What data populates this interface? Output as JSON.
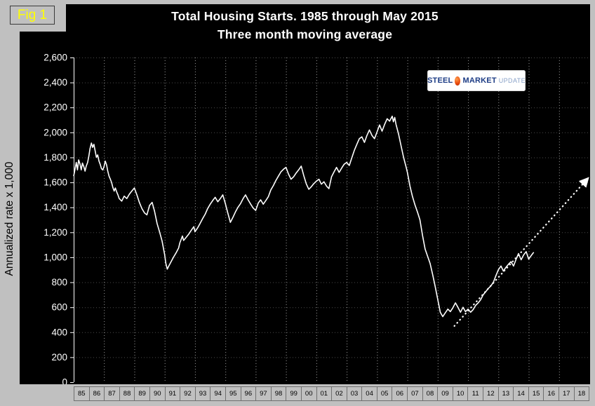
{
  "figure": {
    "label": "Fig 1"
  },
  "logo": {
    "steel": "STEEL",
    "market": "MARKET",
    "update": "UPDATE"
  },
  "colors": {
    "frame": "#c0c0c0",
    "plot_background": "#000000",
    "line": "#ffffff",
    "fig_label": "#ffff00",
    "logo_text": "#1d3c85",
    "logo_ball": "#e8480a"
  },
  "chart_data": {
    "type": "line",
    "title": "Total Housing Starts. 1985 through May 2015",
    "subtitle": "Three month moving average",
    "ylabel": "Annualized rate x 1,000",
    "ylim": [
      0,
      2600
    ],
    "ytick_step": 200,
    "ytick_labels": [
      "0",
      "200",
      "400",
      "600",
      "800",
      "1,000",
      "1,200",
      "1,400",
      "1,600",
      "1,800",
      "2,000",
      "2,200",
      "2,400",
      "2,600"
    ],
    "x_range": [
      1985,
      2019
    ],
    "xtick_labels": [
      "85",
      "86",
      "87",
      "88",
      "89",
      "90",
      "91",
      "92",
      "93",
      "94",
      "95",
      "96",
      "97",
      "98",
      "99",
      "00",
      "01",
      "02",
      "03",
      "04",
      "05",
      "06",
      "07",
      "08",
      "09",
      "10",
      "11",
      "12",
      "13",
      "14",
      "15",
      "16",
      "17",
      "18"
    ],
    "grid": {
      "horizontal": "dotted",
      "vertical": "dotted every 2 years"
    },
    "legend": "none",
    "series": [
      {
        "name": "housing-starts-3mma",
        "style": "solid",
        "color": "#ffffff",
        "points": [
          [
            1985.0,
            1650
          ],
          [
            1985.08,
            1700
          ],
          [
            1985.17,
            1760
          ],
          [
            1985.25,
            1700
          ],
          [
            1985.33,
            1780
          ],
          [
            1985.42,
            1745
          ],
          [
            1985.5,
            1700
          ],
          [
            1985.58,
            1755
          ],
          [
            1985.67,
            1725
          ],
          [
            1985.75,
            1690
          ],
          [
            1985.83,
            1730
          ],
          [
            1985.92,
            1760
          ],
          [
            1986.0,
            1810
          ],
          [
            1986.08,
            1870
          ],
          [
            1986.17,
            1915
          ],
          [
            1986.25,
            1880
          ],
          [
            1986.33,
            1905
          ],
          [
            1986.42,
            1850
          ],
          [
            1986.5,
            1800
          ],
          [
            1986.58,
            1820
          ],
          [
            1986.67,
            1770
          ],
          [
            1986.75,
            1745
          ],
          [
            1986.83,
            1710
          ],
          [
            1986.92,
            1700
          ],
          [
            1987.0,
            1725
          ],
          [
            1987.08,
            1770
          ],
          [
            1987.17,
            1740
          ],
          [
            1987.25,
            1690
          ],
          [
            1987.33,
            1650
          ],
          [
            1987.42,
            1625
          ],
          [
            1987.5,
            1600
          ],
          [
            1987.58,
            1560
          ],
          [
            1987.67,
            1530
          ],
          [
            1987.75,
            1555
          ],
          [
            1987.83,
            1525
          ],
          [
            1987.92,
            1500
          ],
          [
            1988.0,
            1470
          ],
          [
            1988.17,
            1450
          ],
          [
            1988.33,
            1490
          ],
          [
            1988.5,
            1470
          ],
          [
            1988.67,
            1505
          ],
          [
            1988.83,
            1530
          ],
          [
            1989.0,
            1555
          ],
          [
            1989.17,
            1500
          ],
          [
            1989.33,
            1440
          ],
          [
            1989.5,
            1390
          ],
          [
            1989.67,
            1355
          ],
          [
            1989.83,
            1340
          ],
          [
            1990.0,
            1415
          ],
          [
            1990.17,
            1440
          ],
          [
            1990.33,
            1370
          ],
          [
            1990.5,
            1270
          ],
          [
            1990.67,
            1200
          ],
          [
            1990.83,
            1130
          ],
          [
            1991.0,
            1020
          ],
          [
            1991.08,
            950
          ],
          [
            1991.17,
            905
          ],
          [
            1991.25,
            925
          ],
          [
            1991.42,
            965
          ],
          [
            1991.58,
            1000
          ],
          [
            1991.75,
            1035
          ],
          [
            1991.92,
            1075
          ],
          [
            1992.0,
            1115
          ],
          [
            1992.17,
            1170
          ],
          [
            1992.25,
            1135
          ],
          [
            1992.42,
            1160
          ],
          [
            1992.58,
            1185
          ],
          [
            1992.75,
            1215
          ],
          [
            1992.92,
            1245
          ],
          [
            1993.0,
            1205
          ],
          [
            1993.17,
            1235
          ],
          [
            1993.33,
            1270
          ],
          [
            1993.5,
            1310
          ],
          [
            1993.67,
            1345
          ],
          [
            1993.83,
            1390
          ],
          [
            1994.0,
            1425
          ],
          [
            1994.17,
            1455
          ],
          [
            1994.33,
            1480
          ],
          [
            1994.5,
            1445
          ],
          [
            1994.67,
            1470
          ],
          [
            1994.83,
            1500
          ],
          [
            1995.0,
            1430
          ],
          [
            1995.17,
            1350
          ],
          [
            1995.33,
            1280
          ],
          [
            1995.5,
            1320
          ],
          [
            1995.67,
            1365
          ],
          [
            1995.83,
            1400
          ],
          [
            1996.0,
            1430
          ],
          [
            1996.17,
            1470
          ],
          [
            1996.33,
            1500
          ],
          [
            1996.5,
            1460
          ],
          [
            1996.67,
            1425
          ],
          [
            1996.83,
            1395
          ],
          [
            1997.0,
            1375
          ],
          [
            1997.17,
            1435
          ],
          [
            1997.33,
            1460
          ],
          [
            1997.5,
            1425
          ],
          [
            1997.67,
            1455
          ],
          [
            1997.83,
            1485
          ],
          [
            1998.0,
            1540
          ],
          [
            1998.17,
            1575
          ],
          [
            1998.33,
            1615
          ],
          [
            1998.5,
            1650
          ],
          [
            1998.67,
            1685
          ],
          [
            1998.83,
            1705
          ],
          [
            1999.0,
            1720
          ],
          [
            1999.17,
            1665
          ],
          [
            1999.33,
            1625
          ],
          [
            1999.5,
            1645
          ],
          [
            1999.67,
            1675
          ],
          [
            1999.83,
            1700
          ],
          [
            2000.0,
            1730
          ],
          [
            2000.17,
            1655
          ],
          [
            2000.33,
            1590
          ],
          [
            2000.5,
            1545
          ],
          [
            2000.67,
            1565
          ],
          [
            2000.83,
            1590
          ],
          [
            2001.0,
            1610
          ],
          [
            2001.17,
            1625
          ],
          [
            2001.33,
            1585
          ],
          [
            2001.5,
            1605
          ],
          [
            2001.67,
            1570
          ],
          [
            2001.83,
            1550
          ],
          [
            2002.0,
            1645
          ],
          [
            2002.17,
            1685
          ],
          [
            2002.33,
            1720
          ],
          [
            2002.5,
            1680
          ],
          [
            2002.67,
            1715
          ],
          [
            2002.83,
            1745
          ],
          [
            2003.0,
            1760
          ],
          [
            2003.17,
            1735
          ],
          [
            2003.33,
            1795
          ],
          [
            2003.5,
            1855
          ],
          [
            2003.67,
            1905
          ],
          [
            2003.83,
            1950
          ],
          [
            2004.0,
            1965
          ],
          [
            2004.17,
            1920
          ],
          [
            2004.33,
            1975
          ],
          [
            2004.5,
            2020
          ],
          [
            2004.67,
            1975
          ],
          [
            2004.83,
            1950
          ],
          [
            2005.0,
            2005
          ],
          [
            2005.17,
            2060
          ],
          [
            2005.33,
            2010
          ],
          [
            2005.5,
            2065
          ],
          [
            2005.67,
            2110
          ],
          [
            2005.83,
            2090
          ],
          [
            2006.0,
            2130
          ],
          [
            2006.08,
            2085
          ],
          [
            2006.17,
            2120
          ],
          [
            2006.25,
            2065
          ],
          [
            2006.42,
            1985
          ],
          [
            2006.58,
            1895
          ],
          [
            2006.75,
            1800
          ],
          [
            2006.92,
            1720
          ],
          [
            2007.0,
            1680
          ],
          [
            2007.17,
            1570
          ],
          [
            2007.33,
            1490
          ],
          [
            2007.5,
            1420
          ],
          [
            2007.67,
            1360
          ],
          [
            2007.83,
            1300
          ],
          [
            2008.0,
            1175
          ],
          [
            2008.17,
            1065
          ],
          [
            2008.33,
            1010
          ],
          [
            2008.5,
            950
          ],
          [
            2008.67,
            860
          ],
          [
            2008.83,
            770
          ],
          [
            2009.0,
            665
          ],
          [
            2009.17,
            560
          ],
          [
            2009.33,
            525
          ],
          [
            2009.5,
            555
          ],
          [
            2009.67,
            585
          ],
          [
            2009.83,
            565
          ],
          [
            2010.0,
            595
          ],
          [
            2010.17,
            635
          ],
          [
            2010.33,
            600
          ],
          [
            2010.5,
            560
          ],
          [
            2010.67,
            600
          ],
          [
            2010.83,
            565
          ],
          [
            2011.0,
            585
          ],
          [
            2011.17,
            560
          ],
          [
            2011.33,
            580
          ],
          [
            2011.5,
            615
          ],
          [
            2011.67,
            635
          ],
          [
            2011.83,
            660
          ],
          [
            2012.0,
            700
          ],
          [
            2012.17,
            725
          ],
          [
            2012.33,
            750
          ],
          [
            2012.5,
            770
          ],
          [
            2012.67,
            800
          ],
          [
            2012.83,
            850
          ],
          [
            2013.0,
            900
          ],
          [
            2013.17,
            930
          ],
          [
            2013.33,
            890
          ],
          [
            2013.5,
            920
          ],
          [
            2013.67,
            945
          ],
          [
            2013.83,
            965
          ],
          [
            2014.0,
            930
          ],
          [
            2014.17,
            985
          ],
          [
            2014.33,
            1030
          ],
          [
            2014.5,
            980
          ],
          [
            2014.67,
            1020
          ],
          [
            2014.83,
            1045
          ],
          [
            2015.0,
            985
          ],
          [
            2015.17,
            1015
          ],
          [
            2015.33,
            1040
          ]
        ]
      },
      {
        "name": "trend-projection",
        "style": "dotted-arrow",
        "color": "#ffffff",
        "points": [
          [
            2010.1,
            450
          ],
          [
            2018.85,
            1625
          ]
        ]
      }
    ]
  }
}
